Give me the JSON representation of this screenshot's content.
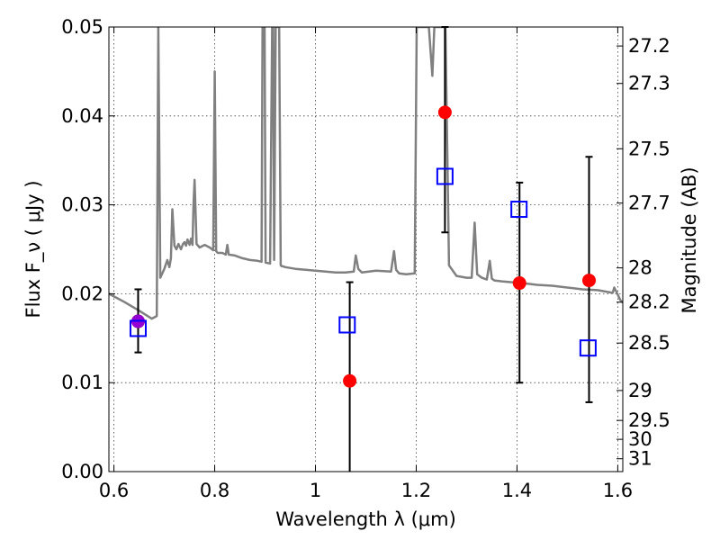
{
  "chart_data": {
    "type": "scatter",
    "title": "",
    "xlabel": "Wavelength  λ (μm)",
    "ylabel": "Flux  F_ν  ( μJy )",
    "y2label": "Magnitude (AB)",
    "xlim": [
      0.59,
      1.61
    ],
    "ylim": [
      0.0,
      0.05
    ],
    "grid": true,
    "x_ticks": [
      0.6,
      0.8,
      1.0,
      1.2,
      1.4,
      1.6
    ],
    "x_tick_labels": [
      "0.6",
      "0.8",
      "1",
      "1.2",
      "1.4",
      "1.6"
    ],
    "y_ticks": [
      0.0,
      0.01,
      0.02,
      0.03,
      0.04,
      0.05
    ],
    "y_tick_labels": [
      "0.00",
      "0.01",
      "0.02",
      "0.03",
      "0.04",
      "0.05"
    ],
    "y2_ticks": [
      27.2,
      27.3,
      27.5,
      27.7,
      28,
      28.2,
      28.5,
      29,
      29.5,
      30,
      31
    ],
    "y2_tick_labels": [
      "27.2",
      "27.3",
      "27.5",
      "27.7",
      "28",
      "28.2",
      "28.5",
      "29",
      "29.5",
      "30",
      "31"
    ],
    "series": [
      {
        "kind": "line",
        "color": "#808080",
        "x": [
          0.59,
          0.62,
          0.65,
          0.675,
          0.685,
          0.688,
          0.692,
          0.7,
          0.706,
          0.71,
          0.713,
          0.716,
          0.72,
          0.724,
          0.728,
          0.733,
          0.737,
          0.74,
          0.743,
          0.746,
          0.75,
          0.753,
          0.756,
          0.758,
          0.76,
          0.764,
          0.77,
          0.78,
          0.79,
          0.797,
          0.8,
          0.803,
          0.806,
          0.815,
          0.822,
          0.825,
          0.828,
          0.84,
          0.855,
          0.87,
          0.885,
          0.893,
          0.895,
          0.897,
          0.899,
          0.901,
          0.91,
          0.914,
          0.916,
          0.918,
          0.921,
          0.923,
          0.925,
          0.928,
          0.931,
          0.933,
          0.935,
          0.94,
          0.96,
          0.98,
          1.0,
          1.02,
          1.04,
          1.06,
          1.076,
          1.08,
          1.085,
          1.092,
          1.12,
          1.15,
          1.156,
          1.16,
          1.166,
          1.18,
          1.197,
          1.201,
          1.203,
          1.208,
          1.215,
          1.225,
          1.232,
          1.236,
          1.238,
          1.241,
          1.25,
          1.258,
          1.265,
          1.28,
          1.3,
          1.31,
          1.316,
          1.321,
          1.33,
          1.34,
          1.346,
          1.35,
          1.355,
          1.37,
          1.39,
          1.41,
          1.44,
          1.47,
          1.5,
          1.53,
          1.56,
          1.58,
          1.59,
          1.593,
          1.6,
          1.605,
          1.61
        ],
        "y": [
          0.02,
          0.0191,
          0.0181,
          0.0172,
          0.0175,
          0.05,
          0.0218,
          0.0228,
          0.0238,
          0.023,
          0.024,
          0.0295,
          0.0254,
          0.025,
          0.0256,
          0.025,
          0.0256,
          0.0258,
          0.0254,
          0.0261,
          0.0255,
          0.0262,
          0.0255,
          0.03,
          0.0328,
          0.0256,
          0.0252,
          0.0255,
          0.0252,
          0.0249,
          0.045,
          0.0248,
          0.0246,
          0.0246,
          0.0244,
          0.0255,
          0.0244,
          0.0243,
          0.024,
          0.0238,
          0.0237,
          0.0236,
          0.05,
          0.05,
          0.05,
          0.0235,
          0.0234,
          0.05,
          0.05,
          0.0238,
          0.05,
          0.05,
          0.05,
          0.05,
          0.0232,
          0.0231,
          0.0231,
          0.023,
          0.0228,
          0.0227,
          0.0226,
          0.0225,
          0.0224,
          0.0224,
          0.0225,
          0.0243,
          0.0228,
          0.0224,
          0.0226,
          0.0225,
          0.0248,
          0.0227,
          0.0223,
          0.0222,
          0.0223,
          0.05,
          0.05,
          0.05,
          0.05,
          0.05,
          0.0445,
          0.05,
          0.05,
          0.05,
          0.05,
          0.05,
          0.0232,
          0.022,
          0.0218,
          0.0218,
          0.028,
          0.0222,
          0.0218,
          0.0216,
          0.0237,
          0.0217,
          0.0215,
          0.0214,
          0.0213,
          0.0212,
          0.021,
          0.0209,
          0.0207,
          0.0205,
          0.0204,
          0.0202,
          0.0201,
          0.0207,
          0.0199,
          0.0193,
          0.019
        ]
      },
      {
        "kind": "error",
        "color": "#000000",
        "x": [
          0.648,
          1.068,
          1.257,
          1.405,
          1.543
        ],
        "y": [
          0.0169,
          0.0102,
          0.0404,
          0.0212,
          0.0215
        ],
        "yerr_low": [
          0.0035,
          0.0102,
          0.0135,
          0.0112,
          0.0137
        ],
        "yerr_high": [
          0.0036,
          0.0111,
          0.0096,
          0.0113,
          0.0139
        ]
      },
      {
        "kind": "scatter",
        "marker": "circle",
        "color": "#ff0000",
        "x": [
          0.648,
          1.068,
          1.257,
          1.405,
          1.543
        ],
        "y": [
          0.0169,
          0.0102,
          0.0404,
          0.0212,
          0.0215
        ]
      },
      {
        "kind": "scatter",
        "marker": "circle",
        "color": "#9400d3",
        "x": [
          0.648
        ],
        "y": [
          0.0169
        ]
      },
      {
        "kind": "scatter",
        "marker": "square",
        "color": "#0000ff",
        "x": [
          0.648,
          1.063,
          1.257,
          1.404,
          1.541
        ],
        "y": [
          0.0161,
          0.0165,
          0.0332,
          0.0295,
          0.0139
        ]
      }
    ]
  }
}
